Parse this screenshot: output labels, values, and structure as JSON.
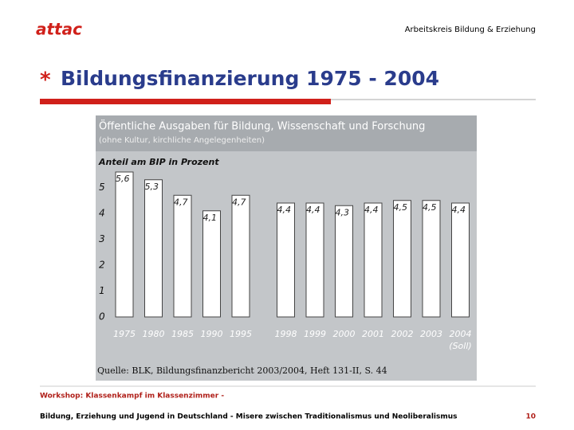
{
  "header": {
    "logo": "attac",
    "org": "Arbeitskreis Bildung & Erziehung"
  },
  "title": {
    "bullet": "*",
    "text": "Bildungsfinanzierung 1975 - 2004"
  },
  "chart_data": {
    "type": "bar",
    "title": "Öffentliche Ausgaben für Bildung, Wissenschaft und Forschung",
    "subtitle": "(ohne Kultur, kirchliche Angelegenheiten)",
    "y_label": "Anteil am BIP in Prozent",
    "categories": [
      "1975",
      "1980",
      "1985",
      "1990",
      "1995",
      "1998",
      "1999",
      "2000",
      "2001",
      "2002",
      "2003",
      "2004"
    ],
    "annotation": "(Soll)",
    "values": [
      5.6,
      5.3,
      4.7,
      4.1,
      4.7,
      4.4,
      4.4,
      4.3,
      4.4,
      4.5,
      4.5,
      4.4
    ],
    "value_labels": [
      "5,6",
      "5,3",
      "4,7",
      "4,1",
      "4,7",
      "4,4",
      "4,4",
      "4,3",
      "4,4",
      "4,5",
      "4,5",
      "4,4"
    ],
    "color": "#ffffff",
    "ylim": [
      0,
      6
    ],
    "yticks": [
      0,
      1,
      2,
      3,
      4,
      5
    ],
    "source": "Quelle: BLK, Bildungsfinanzbericht 2003/2004, Heft 131-II, S. 44"
  },
  "footer": {
    "line1": "Workshop: Klassenkampf im Klassenzimmer -",
    "line2": "Bildung, Erziehung und Jugend in Deutschland - Misere zwischen Traditionalismus und Neoliberalismus",
    "page": "10"
  }
}
